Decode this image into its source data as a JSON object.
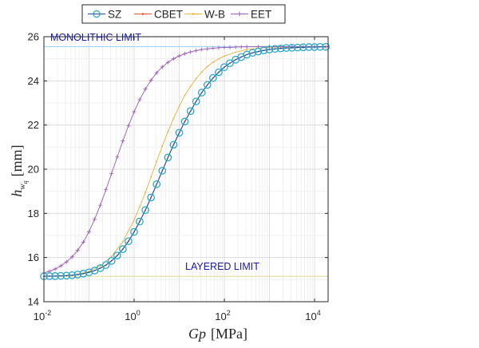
{
  "chart_data": {
    "type": "line",
    "x_scale": "log",
    "xlim": [
      0.01,
      20000
    ],
    "ylim": [
      14,
      26
    ],
    "x_ticks": [
      {
        "value": 0.01,
        "base": "10",
        "exp": "-2"
      },
      {
        "value": 1,
        "base": "10",
        "exp": "0"
      },
      {
        "value": 100,
        "base": "10",
        "exp": "2"
      },
      {
        "value": 10000,
        "base": "10",
        "exp": "4"
      }
    ],
    "y_ticks": [
      "14",
      "16",
      "18",
      "20",
      "22",
      "24",
      "26"
    ],
    "xlabel": "Gp [MPa]",
    "ylabel": "h_wq [mm]",
    "grid": true,
    "legend": {
      "placement": "top",
      "entries": [
        {
          "name": "SZ",
          "color": "#1f4e9a",
          "marker": "circle"
        },
        {
          "name": "CBET",
          "color": "#e4572e",
          "marker": "dot"
        },
        {
          "name": "W-B",
          "color": "#e8b13a",
          "marker": "dot"
        },
        {
          "name": "EET",
          "color": "#9b59b6",
          "marker": "plus"
        }
      ]
    },
    "annotations": {
      "monolithic": "MONOLITHIC LIMIT",
      "layered": "LAYERED LIMIT"
    },
    "reference_lines": {
      "monolithic": {
        "y": 25.55,
        "color": "#9fd8ee"
      },
      "layered": {
        "y": 15.15,
        "color": "#e3dca0"
      }
    },
    "series": [
      {
        "name": "SZ",
        "color": "#1f4e9a",
        "marker_color": "#2aa7c9",
        "x": [
          0.01,
          0.0133,
          0.0178,
          0.0237,
          0.0316,
          0.0422,
          0.0562,
          0.075,
          0.1,
          0.133,
          0.178,
          0.237,
          0.316,
          0.422,
          0.562,
          0.75,
          1,
          1.33,
          1.78,
          2.37,
          3.16,
          4.22,
          5.62,
          7.5,
          10,
          13.3,
          17.8,
          23.7,
          31.6,
          42.2,
          56.2,
          75,
          100,
          133,
          178,
          237,
          316,
          422,
          562,
          750,
          1000,
          1330,
          1780,
          2370,
          3160,
          4220,
          5620,
          7500,
          10000,
          13300,
          17800
        ],
        "y": [
          15.15,
          15.16,
          15.16,
          15.17,
          15.18,
          15.2,
          15.23,
          15.27,
          15.33,
          15.41,
          15.52,
          15.66,
          15.85,
          16.09,
          16.38,
          16.74,
          17.16,
          17.63,
          18.15,
          18.72,
          19.32,
          19.93,
          20.53,
          21.11,
          21.65,
          22.16,
          22.63,
          23.07,
          23.47,
          23.82,
          24.13,
          24.39,
          24.62,
          24.8,
          24.96,
          25.08,
          25.19,
          25.27,
          25.33,
          25.38,
          25.42,
          25.45,
          25.47,
          25.49,
          25.5,
          25.51,
          25.52,
          25.53,
          25.53,
          25.54,
          25.54
        ]
      },
      {
        "name": "CBET",
        "color": "#e4572e",
        "x": [
          0.01,
          0.0133,
          0.0178,
          0.0237,
          0.0316,
          0.0422,
          0.0562,
          0.075,
          0.1,
          0.133,
          0.178,
          0.237,
          0.316,
          0.422,
          0.562,
          0.75,
          1,
          1.33,
          1.78,
          2.37,
          3.16,
          4.22,
          5.62,
          7.5,
          10,
          13.3,
          17.8,
          23.7,
          31.6,
          42.2,
          56.2,
          75,
          100,
          133,
          178,
          237,
          316,
          422,
          562,
          750,
          1000,
          1330,
          1780,
          2370,
          3160,
          4220,
          5620,
          7500,
          10000,
          13300,
          17800
        ],
        "y": [
          15.15,
          15.16,
          15.16,
          15.17,
          15.18,
          15.2,
          15.23,
          15.27,
          15.33,
          15.41,
          15.52,
          15.66,
          15.85,
          16.09,
          16.38,
          16.74,
          17.16,
          17.63,
          18.15,
          18.72,
          19.32,
          19.93,
          20.53,
          21.11,
          21.65,
          22.16,
          22.63,
          23.07,
          23.47,
          23.82,
          24.13,
          24.39,
          24.62,
          24.8,
          24.96,
          25.08,
          25.19,
          25.27,
          25.33,
          25.38,
          25.42,
          25.45,
          25.47,
          25.49,
          25.5,
          25.51,
          25.52,
          25.53,
          25.53,
          25.54,
          25.54
        ]
      },
      {
        "name": "W-B",
        "color": "#e8b13a",
        "x": [
          0.01,
          0.0178,
          0.0316,
          0.0562,
          0.1,
          0.178,
          0.316,
          0.562,
          1,
          1.33,
          1.78,
          2.37,
          3.16,
          4.22,
          5.62,
          7.5,
          10,
          13.3,
          17.8,
          23.7,
          31.6,
          42.2,
          56.2,
          75,
          100,
          178,
          316,
          562,
          1000,
          1780,
          3160,
          5620,
          10000,
          17800
        ],
        "y": [
          15.15,
          15.16,
          15.18,
          15.24,
          15.37,
          15.62,
          16.05,
          16.72,
          17.7,
          18.3,
          18.95,
          19.65,
          20.35,
          21.05,
          21.7,
          22.3,
          22.85,
          23.35,
          23.75,
          24.1,
          24.4,
          24.65,
          24.85,
          25.0,
          25.12,
          25.3,
          25.42,
          25.48,
          25.52,
          25.53,
          25.54,
          25.55,
          25.55,
          25.55
        ]
      },
      {
        "name": "EET",
        "color": "#9b59b6",
        "x": [
          0.01,
          0.0133,
          0.0178,
          0.0237,
          0.0316,
          0.0422,
          0.0562,
          0.075,
          0.1,
          0.133,
          0.178,
          0.237,
          0.316,
          0.422,
          0.562,
          0.75,
          1,
          1.33,
          1.78,
          2.37,
          3.16,
          4.22,
          5.62,
          7.5,
          10,
          13.3,
          17.8,
          23.7,
          31.6,
          42.2,
          56.2,
          75,
          100,
          133,
          178,
          237,
          316,
          562,
          1000,
          1780,
          3160,
          5620,
          10000,
          17800
        ],
        "y": [
          15.3,
          15.38,
          15.48,
          15.62,
          15.8,
          16.03,
          16.33,
          16.7,
          17.17,
          17.73,
          18.37,
          19.07,
          19.8,
          20.55,
          21.28,
          21.97,
          22.6,
          23.15,
          23.63,
          24.03,
          24.37,
          24.63,
          24.84,
          25.0,
          25.13,
          25.23,
          25.31,
          25.37,
          25.42,
          25.45,
          25.48,
          25.5,
          25.51,
          25.52,
          25.53,
          25.54,
          25.54,
          25.55,
          25.55,
          25.55,
          25.55,
          25.55,
          25.55,
          25.55
        ]
      }
    ]
  }
}
